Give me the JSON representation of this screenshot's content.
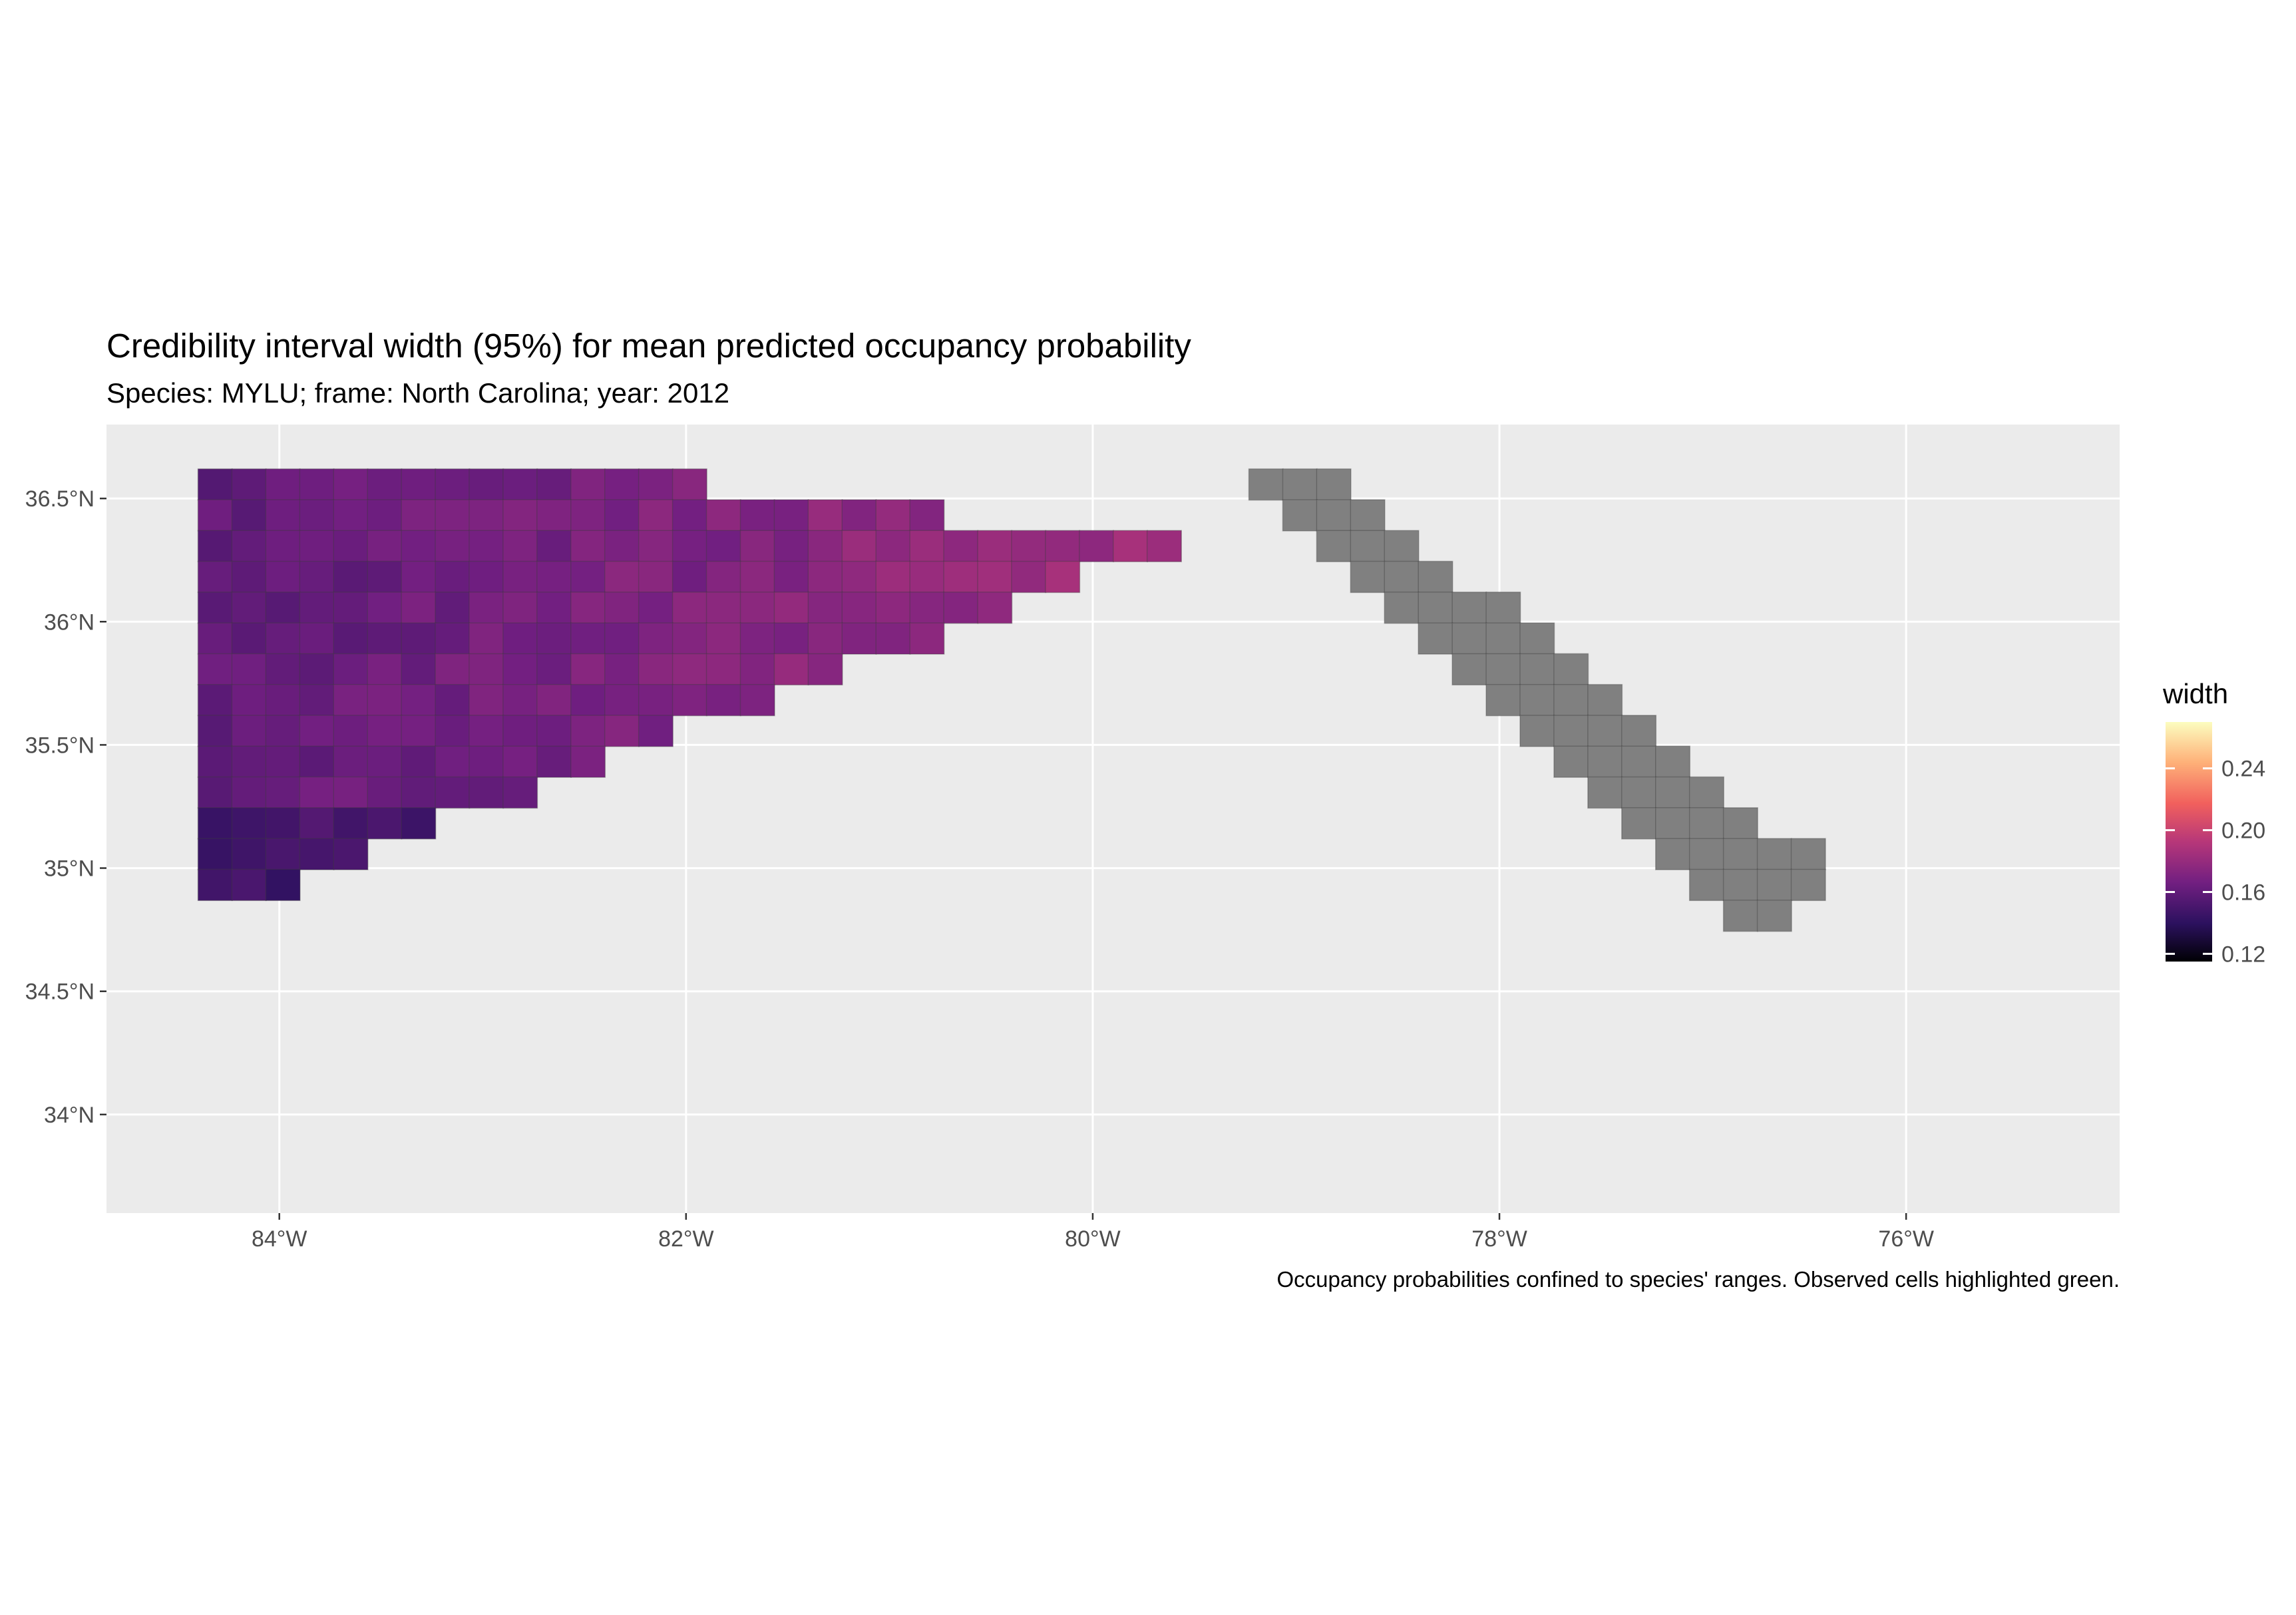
{
  "map": {
    "title": "Credibility interval width (95%) for mean predicted occupancy probability",
    "subtitle": "Species: MYLU; frame: North Carolina; year: 2012",
    "caption": "Occupancy probabilities confined to species' ranges. Observed cells highlighted green.",
    "x_ticks": [
      {
        "value": -84,
        "label": "84°W"
      },
      {
        "value": -82,
        "label": "82°W"
      },
      {
        "value": -80,
        "label": "80°W"
      },
      {
        "value": -78,
        "label": "78°W"
      },
      {
        "value": -76,
        "label": "76°W"
      }
    ],
    "y_ticks": [
      {
        "value": 36.5,
        "label": "36.5°N"
      },
      {
        "value": 36.0,
        "label": "36°N"
      },
      {
        "value": 35.5,
        "label": "35.5°N"
      },
      {
        "value": 35.0,
        "label": "35°N"
      },
      {
        "value": 34.5,
        "label": "34.5°N"
      },
      {
        "value": 34.0,
        "label": "34°N"
      }
    ],
    "xlim": [
      -84.85,
      -74.95
    ],
    "ylim": [
      33.6,
      36.8
    ],
    "colors": {
      "panel": "#ebebeb",
      "grid": "#ffffff",
      "no_data_cell": "#808080",
      "observed_outline": "#3fbf8a",
      "scale": [
        "#000004",
        "#2c115f",
        "#721f81",
        "#b73779",
        "#f1605d",
        "#feb078",
        "#fcfdbf"
      ]
    },
    "legend": {
      "title": "width",
      "range": [
        0.115,
        0.27
      ],
      "ticks": [
        {
          "value": 0.12,
          "label": "0.12"
        },
        {
          "value": 0.16,
          "label": "0.16"
        },
        {
          "value": 0.2,
          "label": "0.20"
        },
        {
          "value": 0.24,
          "label": "0.24"
        }
      ]
    }
  }
}
